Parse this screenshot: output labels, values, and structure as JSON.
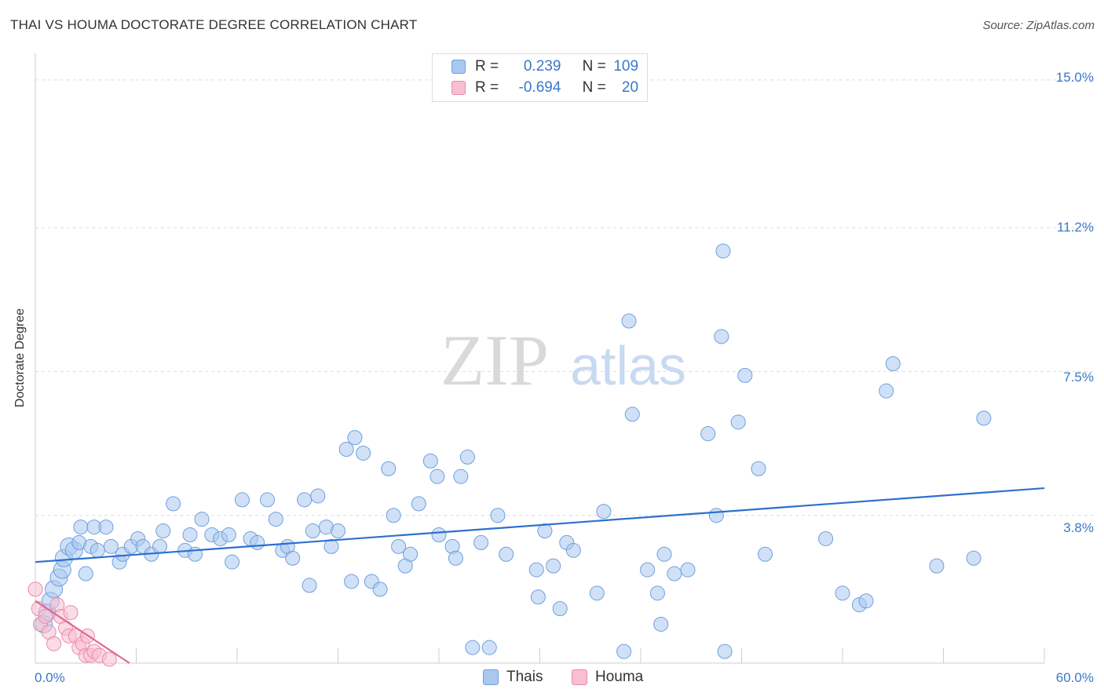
{
  "header": {
    "title": "THAI VS HOUMA DOCTORATE DEGREE CORRELATION CHART",
    "source": "Source: ZipAtlas.com"
  },
  "watermark": {
    "zip": "ZIP",
    "atlas": "atlas"
  },
  "legend": {
    "rows": [
      {
        "r_label": "R =",
        "r_value": "0.239",
        "n_label": "N =",
        "n_value": "109",
        "color": "#a9c8f0",
        "border": "#6f9fdc"
      },
      {
        "r_label": "R =",
        "r_value": "-0.694",
        "n_label": "N =",
        "n_value": "20",
        "color": "#f8bfd0",
        "border": "#e98aa9"
      }
    ]
  },
  "chart_data": {
    "type": "scatter",
    "title": "THAI VS HOUMA DOCTORATE DEGREE CORRELATION CHART",
    "xlabel": "",
    "ylabel": "Doctorate Degree",
    "xlim": [
      0,
      60
    ],
    "ylim": [
      0,
      15.4
    ],
    "y_ticks": [
      3.8,
      7.5,
      11.2,
      15.0
    ],
    "y_tick_labels": [
      "3.8%",
      "7.5%",
      "11.2%",
      "15.0%"
    ],
    "x_tick_labels": [
      "0.0%",
      "60.0%"
    ],
    "grid": true,
    "legend_position": "top-center",
    "series": [
      {
        "name": "Thais",
        "color": "#a9c8f0",
        "edge": "#6f9fdc",
        "trend": {
          "x0": 0,
          "y0": 2.6,
          "x1": 60,
          "y1": 4.5,
          "color": "#2e6fd0"
        },
        "points": [
          [
            0.5,
            1.0
          ],
          [
            0.7,
            1.3
          ],
          [
            0.9,
            1.6
          ],
          [
            1.1,
            1.9
          ],
          [
            1.4,
            2.2
          ],
          [
            1.6,
            2.4
          ],
          [
            1.7,
            2.7
          ],
          [
            2.0,
            3.0
          ],
          [
            2.3,
            2.9
          ],
          [
            2.6,
            3.1
          ],
          [
            3.0,
            2.3
          ],
          [
            2.7,
            3.5
          ],
          [
            3.3,
            3.0
          ],
          [
            3.5,
            3.5
          ],
          [
            3.7,
            2.9
          ],
          [
            4.2,
            3.5
          ],
          [
            4.5,
            3.0
          ],
          [
            5.0,
            2.6
          ],
          [
            5.2,
            2.8
          ],
          [
            5.7,
            3.0
          ],
          [
            6.1,
            3.2
          ],
          [
            6.4,
            3.0
          ],
          [
            6.9,
            2.8
          ],
          [
            7.4,
            3.0
          ],
          [
            7.6,
            3.4
          ],
          [
            8.2,
            4.1
          ],
          [
            8.9,
            2.9
          ],
          [
            9.2,
            3.3
          ],
          [
            9.5,
            2.8
          ],
          [
            9.9,
            3.7
          ],
          [
            10.5,
            3.3
          ],
          [
            11.0,
            3.2
          ],
          [
            11.5,
            3.3
          ],
          [
            11.7,
            2.6
          ],
          [
            12.3,
            4.2
          ],
          [
            12.8,
            3.2
          ],
          [
            13.2,
            3.1
          ],
          [
            13.8,
            4.2
          ],
          [
            14.3,
            3.7
          ],
          [
            14.7,
            2.9
          ],
          [
            15.0,
            3.0
          ],
          [
            15.3,
            2.7
          ],
          [
            16.0,
            4.2
          ],
          [
            16.3,
            2.0
          ],
          [
            16.5,
            3.4
          ],
          [
            16.8,
            4.3
          ],
          [
            17.3,
            3.5
          ],
          [
            17.6,
            3.0
          ],
          [
            18.0,
            3.4
          ],
          [
            18.5,
            5.5
          ],
          [
            18.8,
            2.1
          ],
          [
            19.0,
            5.8
          ],
          [
            19.5,
            5.4
          ],
          [
            20.0,
            2.1
          ],
          [
            20.5,
            1.9
          ],
          [
            21.0,
            5.0
          ],
          [
            21.3,
            3.8
          ],
          [
            21.6,
            3.0
          ],
          [
            22.0,
            2.5
          ],
          [
            22.3,
            2.8
          ],
          [
            22.8,
            4.1
          ],
          [
            23.5,
            5.2
          ],
          [
            23.9,
            4.8
          ],
          [
            24.0,
            3.3
          ],
          [
            24.8,
            3.0
          ],
          [
            25.0,
            2.7
          ],
          [
            25.3,
            4.8
          ],
          [
            25.7,
            5.3
          ],
          [
            26.0,
            0.4
          ],
          [
            26.5,
            3.1
          ],
          [
            27.0,
            0.4
          ],
          [
            27.5,
            3.8
          ],
          [
            28.0,
            2.8
          ],
          [
            29.8,
            2.4
          ],
          [
            29.9,
            1.7
          ],
          [
            30.3,
            3.4
          ],
          [
            30.8,
            2.5
          ],
          [
            31.6,
            3.1
          ],
          [
            32.0,
            2.9
          ],
          [
            31.2,
            1.4
          ],
          [
            33.4,
            1.8
          ],
          [
            33.8,
            3.9
          ],
          [
            35.0,
            0.3
          ],
          [
            35.3,
            8.8
          ],
          [
            35.5,
            6.4
          ],
          [
            36.4,
            2.4
          ],
          [
            37.0,
            1.8
          ],
          [
            37.4,
            2.8
          ],
          [
            37.2,
            1.0
          ],
          [
            38.0,
            2.3
          ],
          [
            38.8,
            2.4
          ],
          [
            40.0,
            5.9
          ],
          [
            40.5,
            3.8
          ],
          [
            40.8,
            8.4
          ],
          [
            40.9,
            10.6
          ],
          [
            41.0,
            0.3
          ],
          [
            41.8,
            6.2
          ],
          [
            42.2,
            7.4
          ],
          [
            43.0,
            5.0
          ],
          [
            43.4,
            2.8
          ],
          [
            47.0,
            3.2
          ],
          [
            48.0,
            1.8
          ],
          [
            49.0,
            1.5
          ],
          [
            49.4,
            1.6
          ],
          [
            50.6,
            7.0
          ],
          [
            51.0,
            7.7
          ],
          [
            53.6,
            2.5
          ],
          [
            55.8,
            2.7
          ],
          [
            56.4,
            6.3
          ]
        ]
      },
      {
        "name": "Houma",
        "color": "#f8bfd0",
        "edge": "#e98aa9",
        "trend": {
          "x0": 0,
          "y0": 1.6,
          "x1": 5.6,
          "y1": 0.0,
          "color": "#e0689a"
        },
        "points": [
          [
            0.0,
            1.9
          ],
          [
            0.2,
            1.4
          ],
          [
            0.3,
            1.0
          ],
          [
            0.6,
            1.2
          ],
          [
            0.8,
            0.8
          ],
          [
            1.1,
            0.5
          ],
          [
            1.3,
            1.5
          ],
          [
            1.5,
            1.2
          ],
          [
            1.8,
            0.9
          ],
          [
            2.0,
            0.7
          ],
          [
            2.1,
            1.3
          ],
          [
            2.4,
            0.7
          ],
          [
            2.6,
            0.4
          ],
          [
            2.8,
            0.5
          ],
          [
            3.0,
            0.2
          ],
          [
            3.1,
            0.7
          ],
          [
            3.3,
            0.2
          ],
          [
            3.5,
            0.3
          ],
          [
            3.8,
            0.2
          ],
          [
            4.4,
            0.1
          ]
        ]
      }
    ]
  },
  "axis": {
    "y_labels": [
      "15.0%",
      "11.2%",
      "7.5%",
      "3.8%"
    ],
    "x_left": "0.0%",
    "x_right": "60.0%"
  },
  "bottom_legend": {
    "items": [
      {
        "label": "Thais",
        "color": "#a9c8f0",
        "border": "#6f9fdc"
      },
      {
        "label": "Houma",
        "color": "#f8bfd0",
        "border": "#e98aa9"
      }
    ]
  }
}
